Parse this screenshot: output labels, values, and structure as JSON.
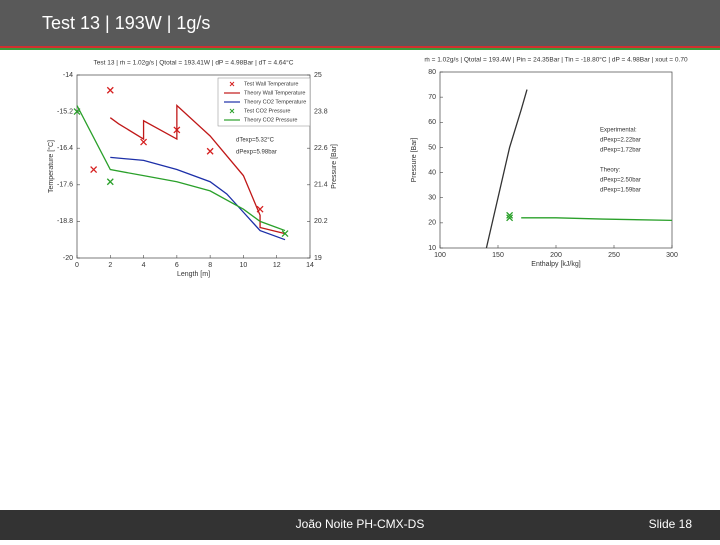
{
  "header": {
    "title": "Test 13 |  193W | 1g/s"
  },
  "footer": {
    "author": "João Noite PH-CMX-DS",
    "slide": "Slide 18"
  },
  "chart_data": [
    {
      "type": "line",
      "title": "Test 13 | ṁ = 1.02g/s | Qtotal = 193.41W | dP = 4.98Bar | dT = 4.64°C",
      "xlabel": "Length [m]",
      "ylabel": "Temperature [°C]",
      "y2label": "Pressure [Bar]",
      "xlim": [
        0,
        14
      ],
      "xticks": [
        0,
        2,
        4,
        6,
        8,
        10,
        12,
        14
      ],
      "ylim": [
        -20,
        -14
      ],
      "yticks": [
        -20,
        -18.8,
        -17.6,
        -16.4,
        -15.2,
        -14
      ],
      "y2lim": [
        19,
        25
      ],
      "y2ticks": [
        19,
        20.2,
        21.4,
        22.6,
        23.8,
        25
      ],
      "legend": true,
      "annotations": [
        "dTexp=5.32°C",
        "dPexp=5.98bar"
      ],
      "series": [
        {
          "name": "Test Wall Temperature",
          "color": "#d62020",
          "style": "markers",
          "x": [
            1,
            2,
            4,
            6,
            8,
            11
          ],
          "values": [
            -17.1,
            -14.5,
            -16.2,
            -15.8,
            -16.5,
            -18.4
          ]
        },
        {
          "name": "Theory Wall Temperature",
          "color": "#c01818",
          "style": "line",
          "x": [
            2,
            2.5,
            4,
            4,
            6,
            6,
            8,
            10,
            11,
            11,
            12.5
          ],
          "values": [
            -15.4,
            -15.6,
            -16.1,
            -15.5,
            -16.1,
            -15.0,
            -16.0,
            -17.3,
            -18.6,
            -19.0,
            -19.2
          ]
        },
        {
          "name": "Theory CO2 Temperature",
          "color": "#1c2fa8",
          "style": "line",
          "x": [
            2,
            4,
            6,
            8,
            9,
            10,
            11,
            12.5
          ],
          "values": [
            -16.7,
            -16.8,
            -17.1,
            -17.5,
            -17.9,
            -18.5,
            -19.1,
            -19.4
          ]
        },
        {
          "name": "Test CO2 Pressure",
          "color": "#2aa02a",
          "style": "markers",
          "axis": "y2",
          "x": [
            0,
            2,
            12.5
          ],
          "values": [
            23.8,
            21.5,
            19.8
          ]
        },
        {
          "name": "Theory CO2 Pressure",
          "color": "#2aa02a",
          "style": "line",
          "axis": "y2",
          "x": [
            0,
            2,
            4,
            6,
            8,
            10,
            11,
            12,
            12.5
          ],
          "values": [
            24.0,
            21.9,
            21.7,
            21.5,
            21.2,
            20.6,
            20.2,
            20.0,
            19.9
          ]
        }
      ]
    },
    {
      "type": "line",
      "title": "ṁ = 1.02g/s | Qtotal = 193.4W | Pin = 24.35Bar | Tin = -18.80°C | dP = 4.98Bar | xout = 0.70",
      "xlabel": "Enthalpy [kJ/kg]",
      "ylabel": "Pressure [Bar]",
      "xlim": [
        100,
        300
      ],
      "xticks": [
        100,
        150,
        200,
        250,
        300
      ],
      "ylim": [
        10,
        80
      ],
      "yticks": [
        10,
        20,
        30,
        40,
        50,
        60,
        70,
        80
      ],
      "legend": false,
      "annotations": [
        "Experimental:",
        "dPexp=2.22bar",
        "dPexp=1.72bar",
        "Theory:",
        "dPexp=2.50bar",
        "dPexp=1.59bar"
      ],
      "series": [
        {
          "color": "#333333",
          "style": "line",
          "x": [
            140,
            150,
            160,
            170,
            175
          ],
          "values": [
            10,
            30,
            50,
            65,
            73
          ]
        },
        {
          "color": "#2aa02a",
          "style": "markers",
          "x": [
            160,
            160
          ],
          "values": [
            22,
            23
          ]
        },
        {
          "color": "#2aa02a",
          "style": "line",
          "x": [
            170,
            200,
            240,
            300
          ],
          "values": [
            22,
            22,
            21.5,
            21
          ]
        }
      ]
    }
  ]
}
